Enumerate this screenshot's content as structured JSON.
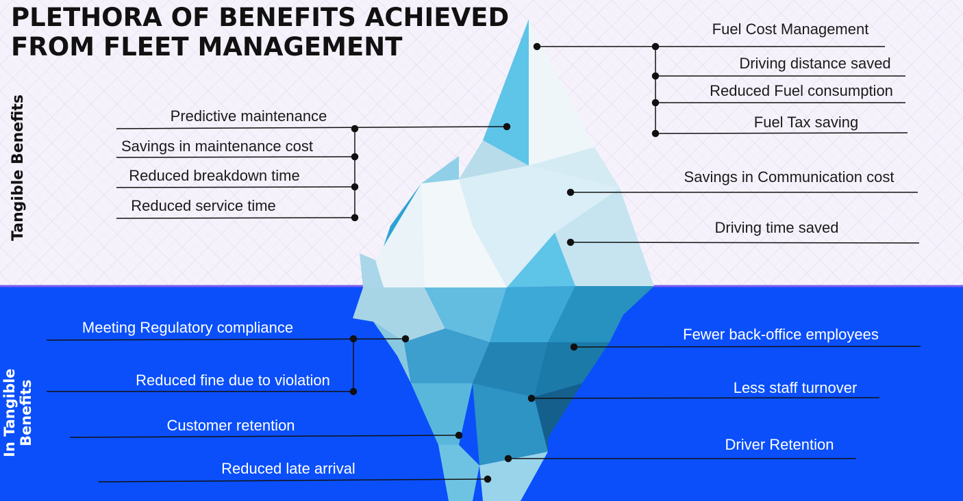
{
  "title": {
    "line1": "PLETHORA OF BENEFITS ACHIEVED",
    "line2": "FROM FLEET MANAGEMENT"
  },
  "sections": {
    "tangible": "Tangible Benefits",
    "intangible_line1": "In Tangible",
    "intangible_line2": "Benefits"
  },
  "tangible_left": {
    "predictive": "Predictive maintenance",
    "maint_cost": "Savings in maintenance cost",
    "breakdown": "Reduced breakdown time",
    "service": "Reduced service time"
  },
  "tangible_right": {
    "fuel_cost": "Fuel Cost Management",
    "distance": "Driving distance saved",
    "fuel_consumption": "Reduced Fuel consumption",
    "fuel_tax": "Fuel Tax saving",
    "communication": "Savings in Communication cost",
    "driving_time": "Driving time saved"
  },
  "intangible_left": {
    "regulatory": "Meeting Regulatory compliance",
    "fine": "Reduced fine due to violation",
    "customer": "Customer retention",
    "late": "Reduced late arrival"
  },
  "intangible_right": {
    "back_office": "Fewer back-office employees",
    "turnover": "Less staff turnover",
    "driver": "Driver Retention"
  },
  "colors": {
    "sky": "#f6f2fb",
    "sea": "#0a4ffa",
    "waterline": "#7b5cf0",
    "ice_light": "#e9f3f8",
    "ice_mid": "#5ec4e8",
    "ice_deep": "#2089b8"
  }
}
